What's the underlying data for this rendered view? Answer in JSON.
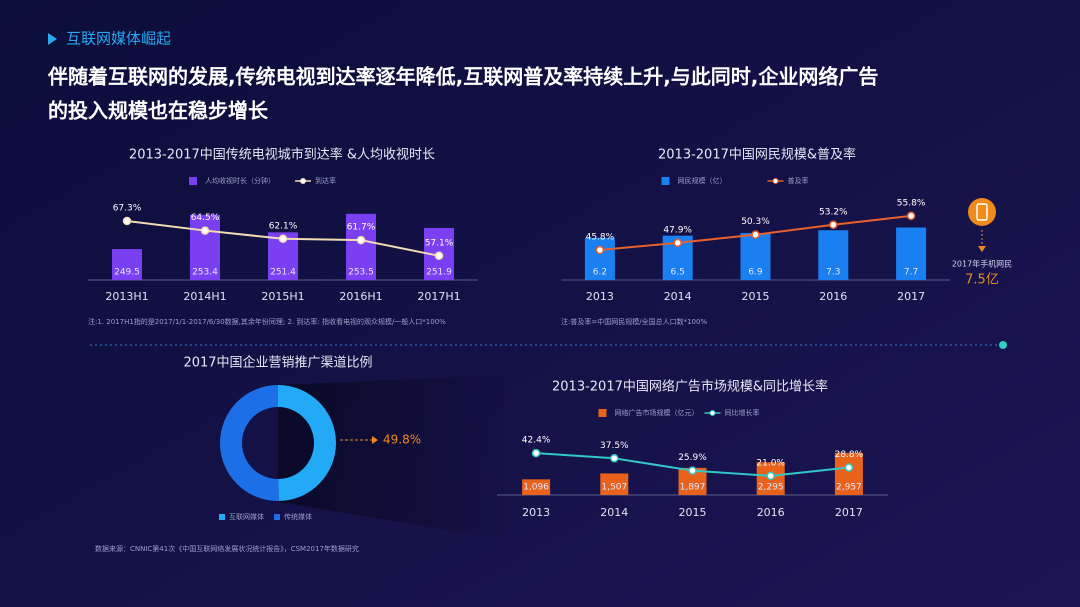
{
  "header": {
    "section": "互联网媒体崛起",
    "headline": [
      "伴随着互联网的发展,传统电视到达率逐年降低,互联网普及率持续上升,与此同时,企业网络广告",
      "的投入规模也在稳步增长"
    ]
  },
  "chart_data": [
    {
      "type": "bar",
      "title": "2013-2017中国传统电视城市到达率 &人均收视时长",
      "categories": [
        "2013H1",
        "2014H1",
        "2015H1",
        "2016H1",
        "2017H1"
      ],
      "ylim": [
        246,
        254.5
      ],
      "y2lim": [
        50,
        72
      ],
      "series": [
        {
          "name": "人均收视时长（分钟）",
          "type": "bar",
          "color": "#7b3ff2",
          "values": [
            249.5,
            253.4,
            251.4,
            253.5,
            251.9
          ]
        },
        {
          "name": "到达率",
          "type": "line",
          "axis": "y2",
          "color": "#f3dcb4",
          "values": [
            67.3,
            64.5,
            62.1,
            61.7,
            57.1
          ],
          "value_labels": [
            "67.3%",
            "64.5%",
            "62.1%",
            "61.7%",
            "57.1%"
          ]
        }
      ],
      "note": "注:1. 2017H1指的是2017/1/1-2017/6/30数据,其余年份同理; 2. 到达率: 指收看电视的观众规模/一般人口*100%"
    },
    {
      "type": "bar",
      "title": "2013-2017中国网民规模&普及率",
      "categories": [
        "2013",
        "2014",
        "2015",
        "2016",
        "2017"
      ],
      "ylim": [
        0,
        11
      ],
      "y2lim": [
        37,
        59
      ],
      "series": [
        {
          "name": "网民规模（亿）",
          "type": "bar",
          "color": "#1a7ff0",
          "values": [
            6.2,
            6.5,
            6.9,
            7.3,
            7.7
          ]
        },
        {
          "name": "普及率",
          "type": "line",
          "axis": "y2",
          "color": "#e8612c",
          "values": [
            45.8,
            47.9,
            50.3,
            53.2,
            55.8
          ],
          "value_labels": [
            "45.8%",
            "47.9%",
            "50.3%",
            "53.2%",
            "55.8%"
          ]
        }
      ],
      "annotation": [
        "2017年手机网民",
        "7.5亿"
      ],
      "note": "注:普及率=中国网民规模/全国总人口数*100%"
    },
    {
      "type": "donut",
      "title": "2017中国企业营销推广渠道比例",
      "categories": [
        "互联网媒体",
        "传统媒体"
      ],
      "colors": [
        "#22aaf7",
        "#1c6fe6"
      ],
      "values": [
        49.8,
        50.2
      ],
      "value_labels": [
        "49.8%",
        null
      ]
    },
    {
      "type": "bar",
      "title": "2013-2017中国网络广告市场规模&同比增长率",
      "categories": [
        "2013",
        "2014",
        "2015",
        "2016",
        "2017"
      ],
      "ylim": [
        0,
        3500
      ],
      "y2lim": [
        3,
        50
      ],
      "series": [
        {
          "name": "网络广告市场规模（亿元）",
          "type": "bar",
          "color": "#e8621c",
          "values": [
            1096,
            1507,
            1897,
            2295,
            2957
          ],
          "value_labels": [
            "1,096",
            "1,507",
            "1,897",
            "2,295",
            "2,957"
          ]
        },
        {
          "name": "同比增长率",
          "type": "line",
          "axis": "y2",
          "color": "#33c6c6",
          "values": [
            42.4,
            37.5,
            25.9,
            21.0,
            28.8
          ],
          "value_labels": [
            "42.4%",
            "37.5%",
            "25.9%",
            "21.0%",
            "28.8%"
          ]
        }
      ]
    }
  ],
  "source": "数据来源：CNNIC第41次《中国互联网络发展状况统计报告》，CSM2017年数据研究"
}
